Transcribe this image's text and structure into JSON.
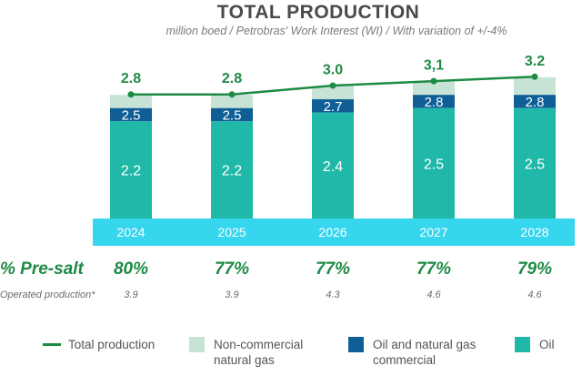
{
  "header": {
    "title": "TOTAL PRODUCTION",
    "subtitle": "million boed / Petrobras' Work Interest (WI) / With variation of +/-4%"
  },
  "rows": {
    "presalt_label": "% Pre-salt",
    "presalt": [
      "80%",
      "77%",
      "77%",
      "77%",
      "79%"
    ],
    "operated_label": "Operated production*",
    "operated": [
      "3.9",
      "3.9",
      "4.3",
      "4.6",
      "4.6"
    ]
  },
  "legend": {
    "total": "Total production",
    "noncommercial": "Non-commercial natural gas",
    "commercial": "Oil and natural gas commercial",
    "oil": "Oil"
  },
  "colors": {
    "oil": "#20b8a8",
    "commercial": "#0f5e96",
    "noncommercial": "#c7e3d6",
    "total_line": "#1e8b45",
    "axis_band": "#36d6ef",
    "label_dark": "#1e8b45"
  },
  "chart_data": {
    "type": "bar",
    "stacked": true,
    "categories": [
      "2024",
      "2025",
      "2026",
      "2027",
      "2028"
    ],
    "series": [
      {
        "name": "Oil",
        "values": [
          2.2,
          2.2,
          2.4,
          2.5,
          2.5
        ],
        "labels": [
          "2.2",
          "2.2",
          "2.4",
          "2.5",
          "2.5"
        ]
      },
      {
        "name": "Oil and natural gas commercial",
        "cumulative": [
          2.5,
          2.5,
          2.7,
          2.8,
          2.8
        ],
        "labels": [
          "2.5",
          "2.5",
          "2.7",
          "2.8",
          "2.8"
        ]
      },
      {
        "name": "Non-commercial natural gas",
        "cumulative": [
          2.8,
          2.8,
          3.0,
          3.1,
          3.2
        ]
      },
      {
        "name": "Total production",
        "type": "line",
        "values": [
          2.8,
          2.8,
          3.0,
          3.1,
          3.2
        ],
        "labels": [
          "2.8",
          "2.8",
          "3.0",
          "3,1",
          "3.2"
        ]
      }
    ],
    "title": "TOTAL PRODUCTION",
    "ylim": [
      0,
      3.2
    ]
  }
}
